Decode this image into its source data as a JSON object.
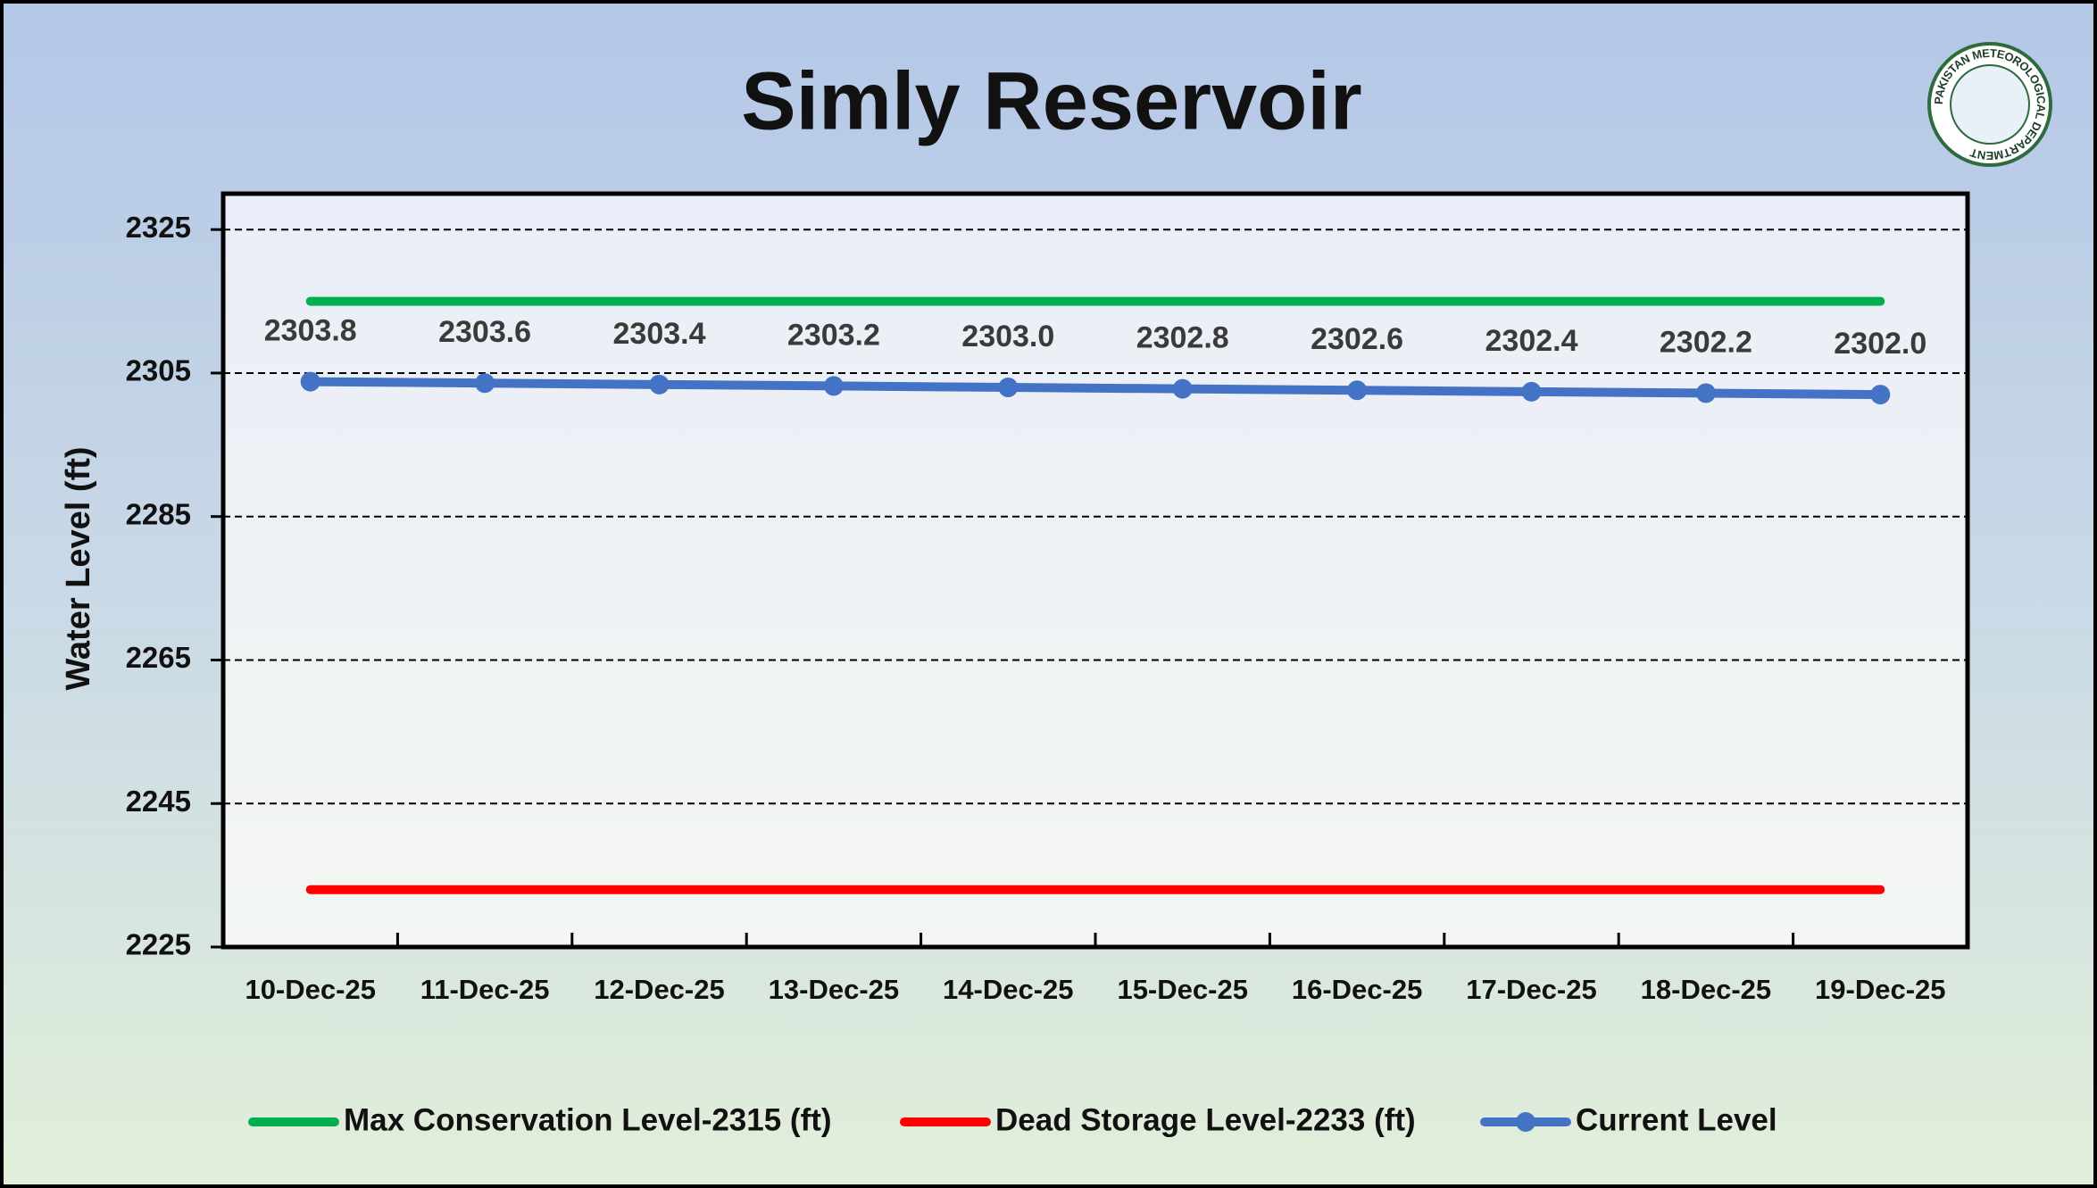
{
  "chart_data": {
    "type": "line",
    "title": "Simly Reservoir",
    "y_label": "Water Level (ft)",
    "logo_text": "PAKISTAN METEOROLOGICAL DEPARTMENT",
    "categories": [
      "10-Dec-25",
      "11-Dec-25",
      "12-Dec-25",
      "13-Dec-25",
      "14-Dec-25",
      "15-Dec-25",
      "16-Dec-25",
      "17-Dec-25",
      "18-Dec-25",
      "19-Dec-25"
    ],
    "series": [
      {
        "name": "Max Conservation Level-2315 (ft)",
        "color": "#00b050",
        "values": [
          2315,
          2315,
          2315,
          2315,
          2315,
          2315,
          2315,
          2315,
          2315,
          2315
        ]
      },
      {
        "name": "Dead Storage Level-2233 (ft)",
        "color": "#ff0000",
        "values": [
          2233,
          2233,
          2233,
          2233,
          2233,
          2233,
          2233,
          2233,
          2233,
          2233
        ]
      },
      {
        "name": "Current Level",
        "color": "#4472c4",
        "markers": true,
        "values": [
          2303.8,
          2303.6,
          2303.4,
          2303.2,
          2303.0,
          2302.8,
          2302.6,
          2302.4,
          2302.2,
          2302.0
        ],
        "value_labels": [
          "2303.8",
          "2303.6",
          "2303.4",
          "2303.2",
          "2303.0",
          "2302.8",
          "2302.6",
          "2302.4",
          "2302.2",
          "2302.0"
        ]
      }
    ],
    "ylim": [
      2225,
      2330
    ],
    "yticks": [
      2225,
      2245,
      2265,
      2285,
      2305,
      2325
    ],
    "grid": true,
    "legend": "bottom"
  }
}
